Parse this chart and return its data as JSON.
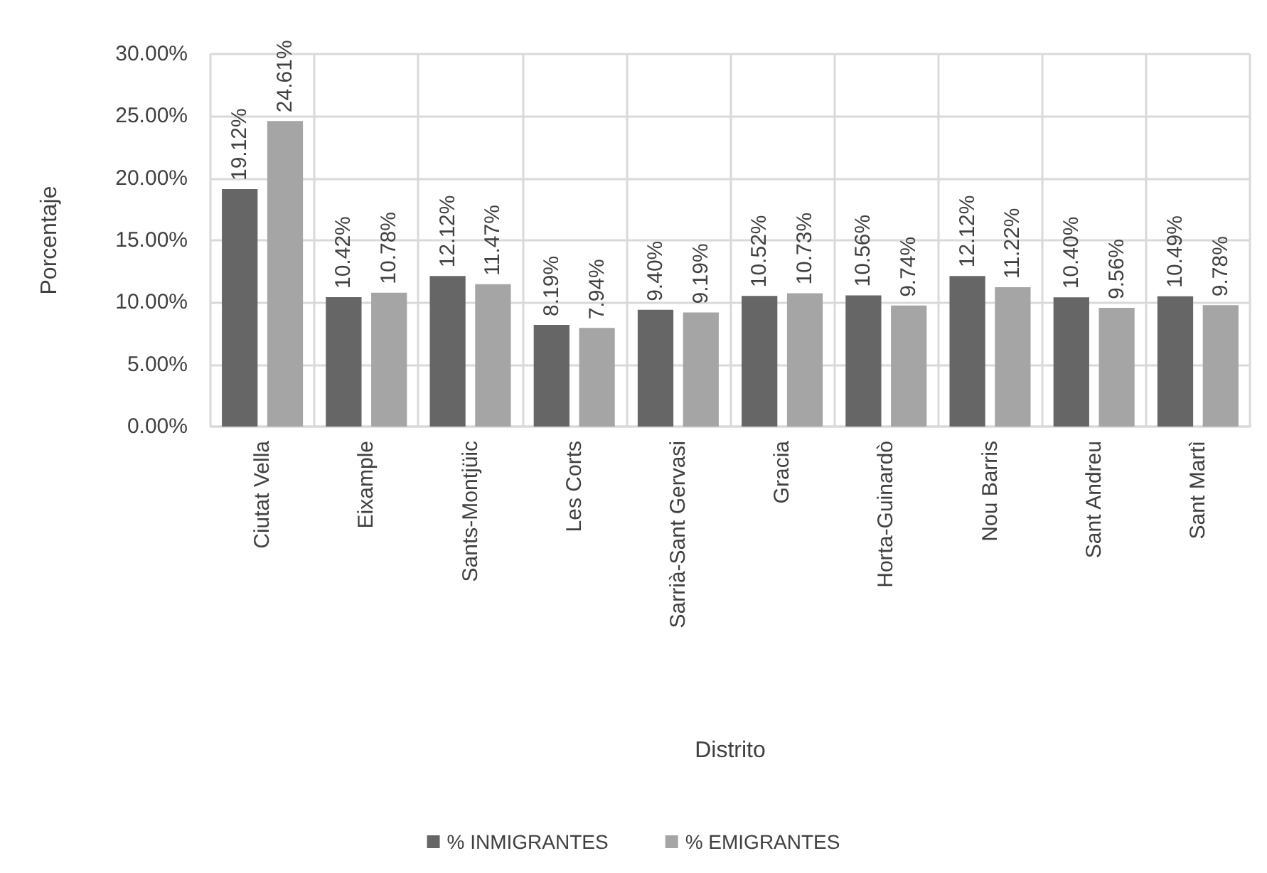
{
  "chart_data": {
    "type": "bar",
    "xlabel": "Distrito",
    "ylabel": "Porcentaje",
    "categories": [
      "Ciutat Vella",
      "Eixample",
      "Sants-Montjüic",
      "Les Corts",
      "Sarrià-Sant Gervasi",
      "Gracia",
      "Horta-Guinardò",
      "Nou Barris",
      "Sant Andreu",
      "Sant Martì"
    ],
    "series": [
      {
        "name": "% INMIGRANTES",
        "color": "#666666",
        "values": [
          19.12,
          10.42,
          12.12,
          8.19,
          9.4,
          10.52,
          10.56,
          12.12,
          10.4,
          10.49
        ],
        "value_labels": [
          "19.12%",
          "10.42%",
          "12.12%",
          "8.19%",
          "9.40%",
          "10.52%",
          "10.56%",
          "12.12%",
          "10.40%",
          "10.49%"
        ]
      },
      {
        "name": "% EMIGRANTES",
        "color": "#a5a5a5",
        "values": [
          24.61,
          10.78,
          11.47,
          7.94,
          9.19,
          10.73,
          9.74,
          11.22,
          9.56,
          9.78
        ],
        "value_labels": [
          "24.61%",
          "10.78%",
          "11.47%",
          "7.94%",
          "9.19%",
          "10.73%",
          "9.74%",
          "11.22%",
          "9.56%",
          "9.78%"
        ]
      }
    ],
    "ylim": [
      0,
      30
    ],
    "yticks": [
      {
        "value": 0,
        "label": "0.00%"
      },
      {
        "value": 5,
        "label": "5.00%"
      },
      {
        "value": 10,
        "label": "10.00%"
      },
      {
        "value": 15,
        "label": "15.00%"
      },
      {
        "value": 20,
        "label": "20.00%"
      },
      {
        "value": 25,
        "label": "25.00%"
      },
      {
        "value": 30,
        "label": "30.00%"
      }
    ],
    "grid": true,
    "legend": "bottom"
  }
}
